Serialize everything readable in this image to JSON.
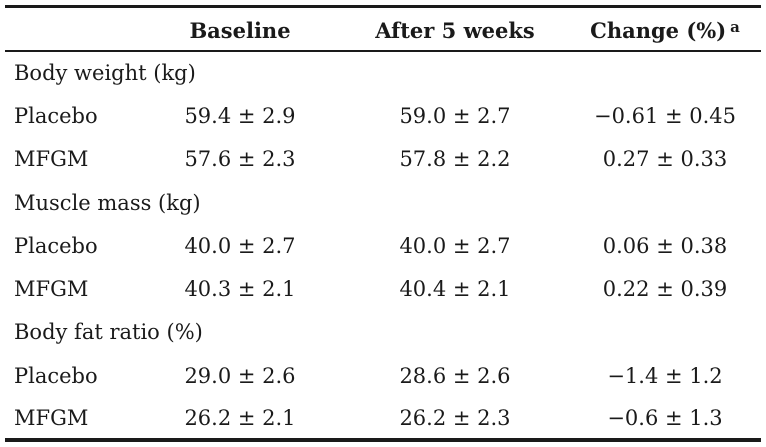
{
  "header": {
    "col_label": "",
    "col_baseline": "Baseline",
    "col_after": "After 5 weeks",
    "col_change": "Change (%)",
    "col_change_note": "a"
  },
  "sections": [
    {
      "title": "Body weight (kg)",
      "rows": [
        {
          "group": "Placebo",
          "baseline": "59.4 ± 2.9",
          "after": "59.0 ± 2.7",
          "change": "−0.61 ± 0.45"
        },
        {
          "group": "MFGM",
          "baseline": "57.6 ± 2.3",
          "after": "57.8 ± 2.2",
          "change": "0.27 ± 0.33"
        }
      ]
    },
    {
      "title": "Muscle mass (kg)",
      "rows": [
        {
          "group": "Placebo",
          "baseline": "40.0 ± 2.7",
          "after": "40.0 ± 2.7",
          "change": "0.06 ± 0.38"
        },
        {
          "group": "MFGM",
          "baseline": "40.3 ± 2.1",
          "after": "40.4 ± 2.1",
          "change": "0.22 ± 0.39"
        }
      ]
    },
    {
      "title": "Body fat ratio (%)",
      "rows": [
        {
          "group": "Placebo",
          "baseline": "29.0 ± 2.6",
          "after": "28.6 ± 2.6",
          "change": "−1.4 ± 1.2"
        },
        {
          "group": "MFGM",
          "baseline": "26.2 ± 2.1",
          "after": "26.2 ± 2.3",
          "change": "−0.6 ± 1.3"
        }
      ]
    }
  ]
}
